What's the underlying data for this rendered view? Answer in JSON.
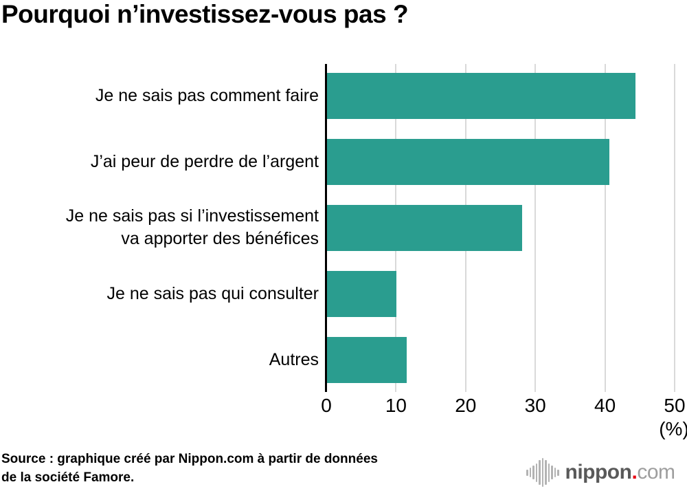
{
  "title": "Pourquoi n’investissez-vous pas ?",
  "chart_data": {
    "type": "bar",
    "orientation": "horizontal",
    "title": "Pourquoi n’investissez-vous pas ?",
    "categories": [
      "Je ne sais pas comment faire",
      "J’ai peur de perdre de l’argent",
      "Je ne sais pas si l’investissement va apporter des bénéfices",
      "Je ne sais pas qui consulter",
      "Autres"
    ],
    "category_lines": [
      [
        "Je ne sais pas comment faire"
      ],
      [
        "J’ai peur de perdre de l’argent"
      ],
      [
        "Je ne sais pas si l’investissement",
        "va apporter des bénéfices"
      ],
      [
        "Je ne sais pas qui consulter"
      ],
      [
        "Autres"
      ]
    ],
    "values": [
      44.3,
      40.5,
      28.0,
      10.0,
      11.4
    ],
    "xlabel": "",
    "ylabel": "",
    "xlim": [
      0,
      50
    ],
    "x_ticks": [
      0,
      10,
      20,
      30,
      40,
      50
    ],
    "x_axis_unit": "(%)",
    "bar_color": "#2A9D8F",
    "gridline_color": "#D9D9D9",
    "axis_color": "#000000",
    "grid": true,
    "legend_position": "none"
  },
  "source": {
    "text": "Source : graphique créé par Nippon.com à partir de données de la société Famore.",
    "lines": [
      "Source : graphique créé par Nippon.com à partir de données",
      "de la société Famore."
    ]
  },
  "logo": {
    "icon": "soundwave-icon",
    "name": "nippon",
    "dot": ".",
    "tld": "com",
    "name_color": "#595959",
    "dot_color": "#E60012",
    "tld_color": "#9E9E9E",
    "icon_color": "#B3B3B3"
  }
}
